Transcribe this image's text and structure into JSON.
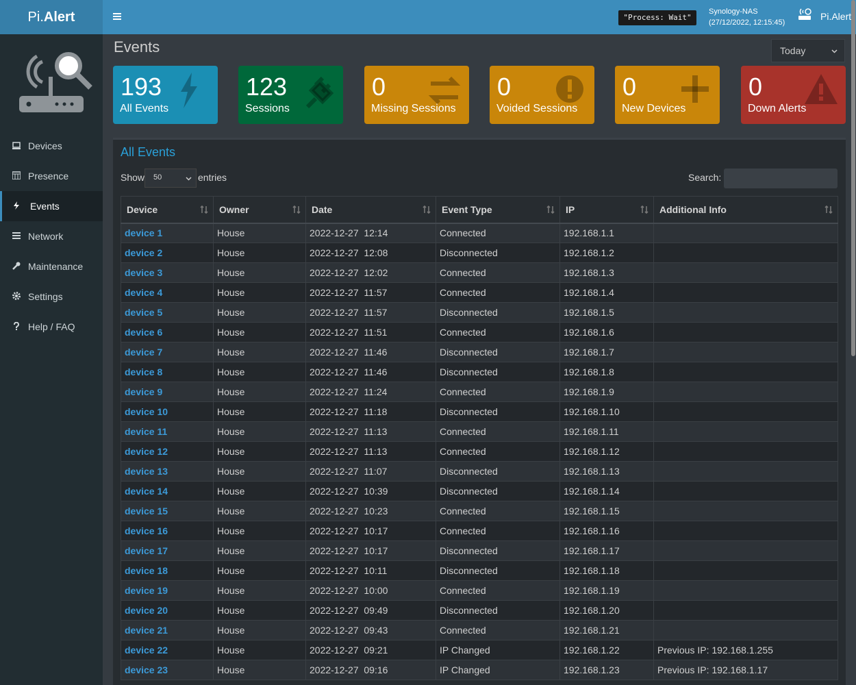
{
  "header": {
    "logo_light": "Pi.",
    "logo_bold": "Alert",
    "status": "\"Process: Wait\"",
    "host": "Synology-NAS",
    "datetime": "(27/12/2022, 12:15:45)",
    "user": "Pi.Alert"
  },
  "sidebar": {
    "items": [
      "Devices",
      "Presence",
      "Events",
      "Network",
      "Maintenance",
      "Settings",
      "Help / FAQ"
    ]
  },
  "page": {
    "title": "Events",
    "period": "Today"
  },
  "tiles": [
    {
      "count": 193,
      "label": "All Events"
    },
    {
      "count": 123,
      "label": "Sessions"
    },
    {
      "count": 0,
      "label": "Missing Sessions"
    },
    {
      "count": 0,
      "label": "Voided Sessions"
    },
    {
      "count": 0,
      "label": "New Devices"
    },
    {
      "count": 0,
      "label": "Down Alerts"
    }
  ],
  "panel": {
    "title": "All Events",
    "show": "Show",
    "length": "50",
    "entries": "entries",
    "search": "Search:"
  },
  "table": {
    "columns": [
      "Device",
      "Owner",
      "Date",
      "Event Type",
      "IP",
      "Additional Info"
    ],
    "rows": [
      [
        "device 1",
        "House",
        "2022-12-27  12:14",
        "Connected",
        "192.168.1.1",
        ""
      ],
      [
        "device 2",
        "House",
        "2022-12-27  12:08",
        "Disconnected",
        "192.168.1.2",
        ""
      ],
      [
        "device 3",
        "House",
        "2022-12-27  12:02",
        "Connected",
        "192.168.1.3",
        ""
      ],
      [
        "device 4",
        "House",
        "2022-12-27  11:57",
        "Connected",
        "192.168.1.4",
        ""
      ],
      [
        "device 5",
        "House",
        "2022-12-27  11:57",
        "Disconnected",
        "192.168.1.5",
        ""
      ],
      [
        "device 6",
        "House",
        "2022-12-27  11:51",
        "Connected",
        "192.168.1.6",
        ""
      ],
      [
        "device 7",
        "House",
        "2022-12-27  11:46",
        "Disconnected",
        "192.168.1.7",
        ""
      ],
      [
        "device 8",
        "House",
        "2022-12-27  11:46",
        "Disconnected",
        "192.168.1.8",
        ""
      ],
      [
        "device 9",
        "House",
        "2022-12-27  11:24",
        "Connected",
        "192.168.1.9",
        ""
      ],
      [
        "device 10",
        "House",
        "2022-12-27  11:18",
        "Disconnected",
        "192.168.1.10",
        ""
      ],
      [
        "device 11",
        "House",
        "2022-12-27  11:13",
        "Connected",
        "192.168.1.11",
        ""
      ],
      [
        "device 12",
        "House",
        "2022-12-27  11:13",
        "Connected",
        "192.168.1.12",
        ""
      ],
      [
        "device 13",
        "House",
        "2022-12-27  11:07",
        "Disconnected",
        "192.168.1.13",
        ""
      ],
      [
        "device 14",
        "House",
        "2022-12-27  10:39",
        "Disconnected",
        "192.168.1.14",
        ""
      ],
      [
        "device 15",
        "House",
        "2022-12-27  10:23",
        "Connected",
        "192.168.1.15",
        ""
      ],
      [
        "device 16",
        "House",
        "2022-12-27  10:17",
        "Connected",
        "192.168.1.16",
        ""
      ],
      [
        "device 17",
        "House",
        "2022-12-27  10:17",
        "Disconnected",
        "192.168.1.17",
        ""
      ],
      [
        "device 18",
        "House",
        "2022-12-27  10:11",
        "Disconnected",
        "192.168.1.18",
        ""
      ],
      [
        "device 19",
        "House",
        "2022-12-27  10:00",
        "Connected",
        "192.168.1.19",
        ""
      ],
      [
        "device 20",
        "House",
        "2022-12-27  09:49",
        "Disconnected",
        "192.168.1.20",
        ""
      ],
      [
        "device 21",
        "House",
        "2022-12-27  09:43",
        "Connected",
        "192.168.1.21",
        ""
      ],
      [
        "device 22",
        "House",
        "2022-12-27  09:21",
        "IP Changed",
        "192.168.1.22",
        "Previous IP: 192.168.1.255"
      ],
      [
        "device 23",
        "House",
        "2022-12-27  09:16",
        "IP Changed",
        "192.168.1.23",
        "Previous IP: 192.168.1.17"
      ]
    ]
  }
}
